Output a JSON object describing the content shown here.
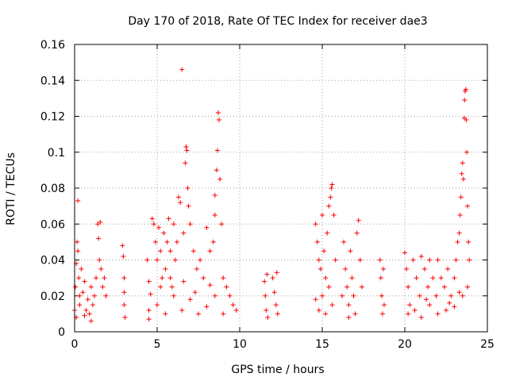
{
  "chart_data": {
    "type": "scatter",
    "title": "Day 170 of 2018, Rate Of TEC Index for receiver dae3",
    "xlabel": "GPS time / hours",
    "ylabel": "ROTI / TECUs",
    "xlim": [
      0,
      25
    ],
    "ylim": [
      0,
      0.16
    ],
    "xticks": [
      0,
      5,
      10,
      15,
      20,
      25
    ],
    "xtick_labels": [
      "0",
      "5",
      "10",
      "15",
      "20",
      "25"
    ],
    "yticks": [
      0,
      0.02,
      0.04,
      0.06,
      0.08,
      0.1,
      0.12,
      0.14,
      0.16
    ],
    "ytick_labels": [
      "0",
      "0.02",
      "0.04",
      "0.06",
      "0.08",
      "0.1",
      "0.12",
      "0.14",
      "0.16"
    ],
    "grid": true,
    "marker": "+",
    "color": "#ff0000",
    "series": [
      {
        "name": "ROTI",
        "points": [
          [
            0.0,
            0.012
          ],
          [
            0.05,
            0.025
          ],
          [
            0.1,
            0.038
          ],
          [
            0.15,
            0.05
          ],
          [
            0.2,
            0.073
          ],
          [
            0.2,
            0.045
          ],
          [
            0.25,
            0.03
          ],
          [
            0.3,
            0.02
          ],
          [
            0.1,
            0.008
          ],
          [
            0.3,
            0.015
          ],
          [
            0.4,
            0.035
          ],
          [
            0.5,
            0.022
          ],
          [
            0.6,
            0.028
          ],
          [
            0.7,
            0.012
          ],
          [
            0.8,
            0.018
          ],
          [
            0.9,
            0.01
          ],
          [
            1.0,
            0.025
          ],
          [
            1.1,
            0.015
          ],
          [
            1.2,
            0.02
          ],
          [
            1.3,
            0.03
          ],
          [
            1.4,
            0.06
          ],
          [
            1.45,
            0.052
          ],
          [
            1.5,
            0.04
          ],
          [
            1.55,
            0.061
          ],
          [
            1.6,
            0.035
          ],
          [
            1.7,
            0.025
          ],
          [
            1.8,
            0.03
          ],
          [
            1.9,
            0.02
          ],
          [
            0.6,
            0.009
          ],
          [
            1.0,
            0.006
          ],
          [
            2.9,
            0.048
          ],
          [
            2.95,
            0.042
          ],
          [
            3.0,
            0.03
          ],
          [
            3.0,
            0.015
          ],
          [
            3.05,
            0.008
          ],
          [
            3.0,
            0.022
          ],
          [
            4.4,
            0.04
          ],
          [
            4.5,
            0.028
          ],
          [
            4.5,
            0.012
          ],
          [
            4.6,
            0.021
          ],
          [
            4.5,
            0.007
          ],
          [
            4.7,
            0.063
          ],
          [
            4.8,
            0.06
          ],
          [
            4.9,
            0.05
          ],
          [
            5.0,
            0.04
          ],
          [
            5.1,
            0.058
          ],
          [
            5.2,
            0.045
          ],
          [
            5.3,
            0.03
          ],
          [
            5.4,
            0.055
          ],
          [
            5.5,
            0.035
          ],
          [
            5.6,
            0.05
          ],
          [
            5.7,
            0.063
          ],
          [
            5.8,
            0.045
          ],
          [
            5.9,
            0.025
          ],
          [
            6.0,
            0.06
          ],
          [
            6.1,
            0.04
          ],
          [
            6.2,
            0.05
          ],
          [
            6.3,
            0.075
          ],
          [
            6.4,
            0.072
          ],
          [
            6.5,
            0.146
          ],
          [
            6.6,
            0.055
          ],
          [
            6.7,
            0.094
          ],
          [
            6.75,
            0.103
          ],
          [
            6.8,
            0.101
          ],
          [
            6.85,
            0.08
          ],
          [
            6.9,
            0.07
          ],
          [
            7.0,
            0.06
          ],
          [
            7.2,
            0.045
          ],
          [
            7.4,
            0.035
          ],
          [
            7.6,
            0.04
          ],
          [
            7.8,
            0.03
          ],
          [
            8.0,
            0.058
          ],
          [
            8.2,
            0.045
          ],
          [
            8.4,
            0.05
          ],
          [
            8.5,
            0.065
          ],
          [
            8.6,
            0.09
          ],
          [
            8.65,
            0.101
          ],
          [
            8.7,
            0.122
          ],
          [
            8.75,
            0.118
          ],
          [
            8.8,
            0.085
          ],
          [
            8.9,
            0.06
          ],
          [
            8.5,
            0.076
          ],
          [
            9.0,
            0.03
          ],
          [
            9.2,
            0.025
          ],
          [
            9.4,
            0.02
          ],
          [
            9.6,
            0.015
          ],
          [
            9.8,
            0.012
          ],
          [
            5.0,
            0.015
          ],
          [
            5.5,
            0.01
          ],
          [
            6.0,
            0.02
          ],
          [
            6.5,
            0.012
          ],
          [
            7.0,
            0.018
          ],
          [
            7.5,
            0.01
          ],
          [
            8.0,
            0.014
          ],
          [
            8.5,
            0.02
          ],
          [
            9.0,
            0.01
          ],
          [
            5.2,
            0.025
          ],
          [
            5.8,
            0.03
          ],
          [
            6.6,
            0.028
          ],
          [
            7.3,
            0.022
          ],
          [
            8.2,
            0.026
          ],
          [
            11.5,
            0.028
          ],
          [
            11.55,
            0.02
          ],
          [
            11.6,
            0.012
          ],
          [
            11.65,
            0.032
          ],
          [
            11.7,
            0.008
          ],
          [
            12.0,
            0.03
          ],
          [
            12.1,
            0.022
          ],
          [
            12.2,
            0.015
          ],
          [
            12.25,
            0.033
          ],
          [
            12.3,
            0.01
          ],
          [
            14.6,
            0.06
          ],
          [
            14.7,
            0.05
          ],
          [
            14.8,
            0.04
          ],
          [
            14.9,
            0.035
          ],
          [
            15.0,
            0.065
          ],
          [
            15.1,
            0.045
          ],
          [
            15.2,
            0.03
          ],
          [
            15.3,
            0.055
          ],
          [
            15.4,
            0.07
          ],
          [
            15.5,
            0.075
          ],
          [
            15.55,
            0.08
          ],
          [
            15.6,
            0.082
          ],
          [
            15.7,
            0.065
          ],
          [
            15.8,
            0.04
          ],
          [
            14.6,
            0.018
          ],
          [
            14.8,
            0.012
          ],
          [
            15.0,
            0.02
          ],
          [
            15.2,
            0.01
          ],
          [
            15.4,
            0.025
          ],
          [
            15.6,
            0.015
          ],
          [
            16.3,
            0.05
          ],
          [
            16.4,
            0.035
          ],
          [
            16.5,
            0.025
          ],
          [
            16.6,
            0.015
          ],
          [
            16.7,
            0.045
          ],
          [
            16.8,
            0.03
          ],
          [
            16.9,
            0.02
          ],
          [
            17.0,
            0.01
          ],
          [
            17.1,
            0.055
          ],
          [
            17.2,
            0.062
          ],
          [
            17.3,
            0.04
          ],
          [
            17.4,
            0.025
          ],
          [
            16.2,
            0.02
          ],
          [
            16.6,
            0.008
          ],
          [
            18.5,
            0.04
          ],
          [
            18.55,
            0.03
          ],
          [
            18.6,
            0.02
          ],
          [
            18.65,
            0.01
          ],
          [
            18.7,
            0.035
          ],
          [
            18.75,
            0.015
          ],
          [
            20.0,
            0.044
          ],
          [
            20.1,
            0.035
          ],
          [
            20.2,
            0.025
          ],
          [
            20.3,
            0.015
          ],
          [
            20.5,
            0.04
          ],
          [
            20.7,
            0.03
          ],
          [
            20.9,
            0.02
          ],
          [
            21.0,
            0.042
          ],
          [
            21.2,
            0.035
          ],
          [
            21.4,
            0.025
          ],
          [
            21.5,
            0.04
          ],
          [
            21.7,
            0.03
          ],
          [
            21.9,
            0.02
          ],
          [
            22.0,
            0.04
          ],
          [
            22.2,
            0.03
          ],
          [
            22.4,
            0.025
          ],
          [
            22.6,
            0.035
          ],
          [
            22.8,
            0.02
          ],
          [
            23.0,
            0.03
          ],
          [
            23.1,
            0.04
          ],
          [
            23.2,
            0.05
          ],
          [
            23.3,
            0.055
          ],
          [
            23.35,
            0.065
          ],
          [
            23.4,
            0.075
          ],
          [
            23.45,
            0.088
          ],
          [
            23.5,
            0.094
          ],
          [
            23.55,
            0.085
          ],
          [
            23.6,
            0.119
          ],
          [
            23.62,
            0.129
          ],
          [
            23.65,
            0.134
          ],
          [
            23.7,
            0.135
          ],
          [
            23.72,
            0.118
          ],
          [
            23.75,
            0.1
          ],
          [
            23.8,
            0.07
          ],
          [
            23.85,
            0.05
          ],
          [
            23.9,
            0.04
          ],
          [
            20.2,
            0.01
          ],
          [
            20.6,
            0.012
          ],
          [
            21.0,
            0.008
          ],
          [
            21.5,
            0.015
          ],
          [
            22.0,
            0.01
          ],
          [
            22.5,
            0.012
          ],
          [
            23.0,
            0.014
          ],
          [
            23.5,
            0.02
          ],
          [
            23.8,
            0.025
          ],
          [
            21.3,
            0.018
          ],
          [
            22.7,
            0.016
          ],
          [
            23.3,
            0.022
          ]
        ]
      }
    ]
  }
}
